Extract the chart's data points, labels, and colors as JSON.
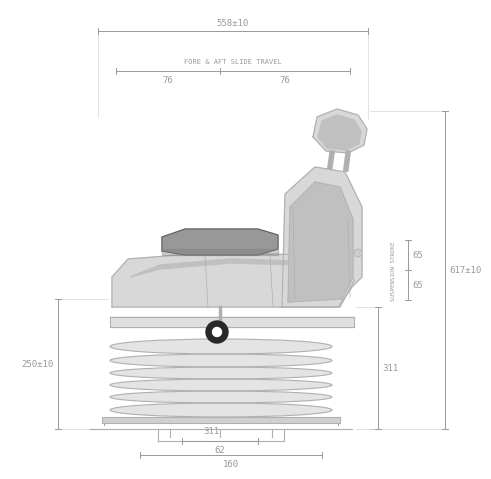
{
  "bg_color": "#ffffff",
  "line_color": "#b0b0b0",
  "dim_color": "#999999",
  "dark_color": "#555555",
  "dim_558": "558±10",
  "dim_76_left": "76",
  "dim_76_right": "76",
  "dim_fore_aft": "FORE & AFT SLIDE TRAVEL",
  "dim_250": "250±10",
  "dim_311_v": "311",
  "dim_311_h": "311",
  "dim_65_top": "65",
  "dim_65_bot": "65",
  "dim_617": "617±10",
  "dim_62": "62",
  "dim_160": "160",
  "label_suspension": "SUSPENSION STROKE",
  "font_size_dim": 6.5,
  "font_size_label": 5.0,
  "seat_fill": "#d8d8d8",
  "seat_fill2": "#c0c0c0",
  "seat_fill3": "#b0b0b0",
  "arm_fill": "#989898",
  "knob_fill": "#282828",
  "bellow_fill": "#e4e4e4"
}
